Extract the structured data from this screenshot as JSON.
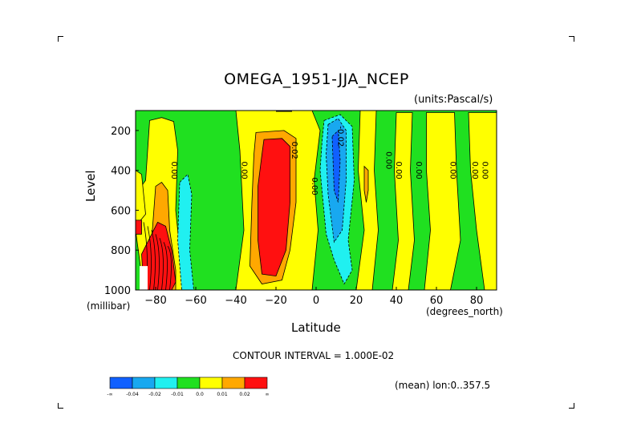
{
  "chart_data": {
    "type": "heatmap",
    "title": "OMEGA_1951-JJA_NCEP",
    "units_note": "(units:Pascal/s)",
    "xlabel": "Latitude",
    "xunit": "(degrees_north)",
    "ylabel": "Level",
    "yunit": "(millibar)",
    "xlim": [
      -90,
      90
    ],
    "ylim": [
      1000,
      100
    ],
    "xticks": [
      -80,
      -60,
      -40,
      -20,
      0,
      20,
      40,
      60,
      80
    ],
    "yticks": [
      200,
      400,
      600,
      800,
      1000
    ],
    "contour_interval": "CONTOUR INTERVAL = 1.000E-02",
    "mean_note": "(mean) lon:0..357.5",
    "contour_labels": [
      {
        "text": "0.00",
        "lat": -72,
        "level": 400
      },
      {
        "text": "0.00",
        "lat": -37,
        "level": 400
      },
      {
        "text": "0.02",
        "lat": -12,
        "level": 300
      },
      {
        "text": "0.00",
        "lat": -2,
        "level": 480
      },
      {
        "text": "-0.02",
        "lat": 11,
        "level": 230
      },
      {
        "text": "0.00",
        "lat": 35,
        "level": 350
      },
      {
        "text": "0.00",
        "lat": 40,
        "level": 400
      },
      {
        "text": "0.00",
        "lat": 50,
        "level": 400
      },
      {
        "text": "0.00",
        "lat": 67,
        "level": 400
      },
      {
        "text": "0.00",
        "lat": 78,
        "level": 400
      },
      {
        "text": "0.00",
        "lat": 83,
        "level": 400
      }
    ],
    "regions": [
      {
        "class": "yellow",
        "lat": [
          -83,
          -68
        ],
        "level": [
          150,
          1000
        ]
      },
      {
        "class": "orange",
        "lat": [
          -80,
          -73
        ],
        "level": [
          450,
          1000
        ]
      },
      {
        "class": "red",
        "lat": [
          -79,
          -70
        ],
        "level": [
          650,
          1000
        ]
      },
      {
        "class": "cyan",
        "lat": [
          -67,
          -62
        ],
        "level": [
          420,
          1000
        ]
      },
      {
        "class": "yellow",
        "lat": [
          -40,
          0
        ],
        "level": [
          100,
          1000
        ]
      },
      {
        "class": "orange",
        "lat": [
          -30,
          -10
        ],
        "level": [
          200,
          980
        ]
      },
      {
        "class": "red",
        "lat": [
          -27,
          -13
        ],
        "level": [
          240,
          950
        ]
      },
      {
        "class": "yellow",
        "lat": [
          22,
          30
        ],
        "level": [
          100,
          1000
        ]
      },
      {
        "class": "yellow",
        "lat": [
          40,
          48
        ],
        "level": [
          150,
          1000
        ]
      },
      {
        "class": "yellow",
        "lat": [
          56,
          70
        ],
        "level": [
          150,
          1000
        ]
      },
      {
        "class": "yellow",
        "lat": [
          74,
          90
        ],
        "level": [
          150,
          1000
        ]
      }
    ],
    "colorbar": {
      "colors": [
        "#1060ff",
        "#18a8f0",
        "#20f0f0",
        "#20e020",
        "#ffff00",
        "#ffa800",
        "#ff1010"
      ],
      "labels": [
        "-∞",
        "-0.04",
        "-0.02",
        "-0.01",
        "0.0",
        "0.01",
        "0.02",
        "∞"
      ]
    }
  }
}
